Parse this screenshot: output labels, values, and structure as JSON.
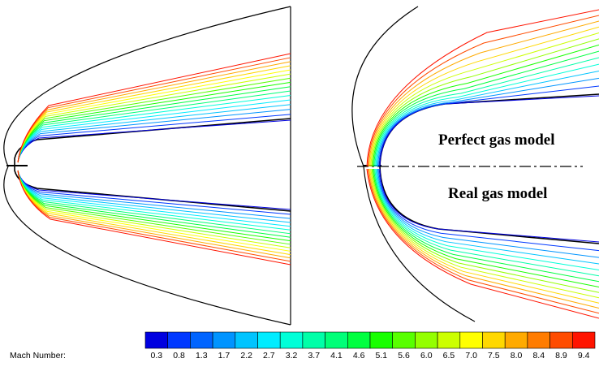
{
  "labels": {
    "top": "Perfect gas model",
    "bottom": "Real gas model"
  },
  "colorbar": {
    "title": "Mach Number:",
    "ticks": [
      "0.3",
      "0.8",
      "1.3",
      "1.7",
      "2.2",
      "2.7",
      "3.2",
      "3.7",
      "4.1",
      "4.6",
      "5.1",
      "5.6",
      "6.0",
      "6.5",
      "7.0",
      "7.5",
      "8.0",
      "8.4",
      "8.9",
      "9.4"
    ],
    "colors": [
      "#0000e0",
      "#0038ff",
      "#0064ff",
      "#0094ff",
      "#00c4ff",
      "#00ecff",
      "#00ffd8",
      "#00ffa8",
      "#00ff78",
      "#00ff40",
      "#18ff00",
      "#58ff00",
      "#94ff00",
      "#ccff00",
      "#ffff00",
      "#ffd800",
      "#ffaa00",
      "#ff7c00",
      "#ff4c00",
      "#ff1400"
    ]
  }
}
